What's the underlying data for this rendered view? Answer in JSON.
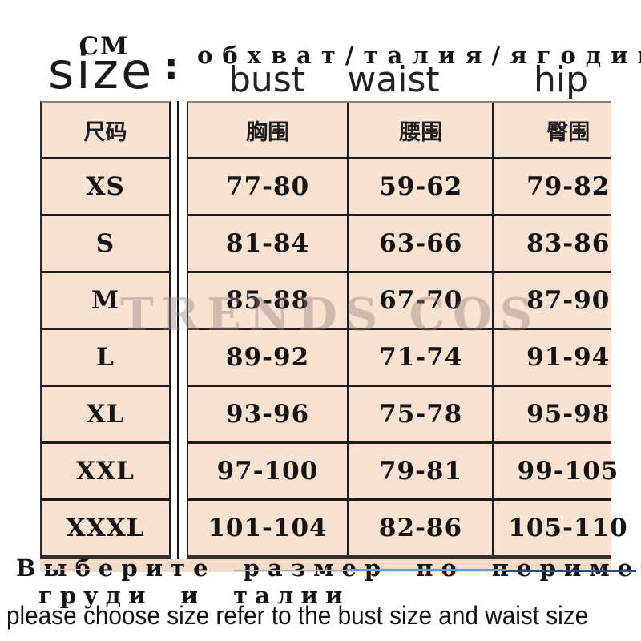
{
  "meta": {
    "unit_label": "CM",
    "size_label": "size",
    "colon": ":"
  },
  "top_header": {
    "russian_measures": "обхват/талия/ягодица",
    "en_columns": {
      "bust": "bust",
      "waist": "waist",
      "hip": "hip"
    }
  },
  "table": {
    "cn_headers": {
      "size": "尺码",
      "bust": "胸围",
      "waist": "腰围",
      "hip": "臀围"
    },
    "rows": [
      {
        "size": "XS",
        "bust": "77-80",
        "waist": "59-62",
        "hip": "79-82"
      },
      {
        "size": "S",
        "bust": "81-84",
        "waist": "63-66",
        "hip": "83-86"
      },
      {
        "size": "M",
        "bust": "85-88",
        "waist": "67-70",
        "hip": "87-90"
      },
      {
        "size": "L",
        "bust": "89-92",
        "waist": "71-74",
        "hip": "91-94"
      },
      {
        "size": "XL",
        "bust": "93-96",
        "waist": "75-78",
        "hip": "95-98"
      },
      {
        "size": "XXL",
        "bust": "97-100",
        "waist": "79-81",
        "hip": "99-105"
      },
      {
        "size": "XXXL",
        "bust": "101-104",
        "waist": "82-86",
        "hip": "105-110"
      }
    ]
  },
  "watermark": "TRENDS COS",
  "footer": {
    "russian_line1": "Выберите размер по периметру",
    "russian_line2": "груди и талии",
    "english": "please choose size refer to the bust size and waist size"
  },
  "colors": {
    "cell_background": "#f9e2d2",
    "table_border": "#1c1c1c",
    "text": "#141414",
    "watermark_gray": "#94827c",
    "artifact_blue_light": "#5f9fd6",
    "artifact_blue_dark": "#274f86",
    "artifact_gray": "#b0aeae"
  }
}
